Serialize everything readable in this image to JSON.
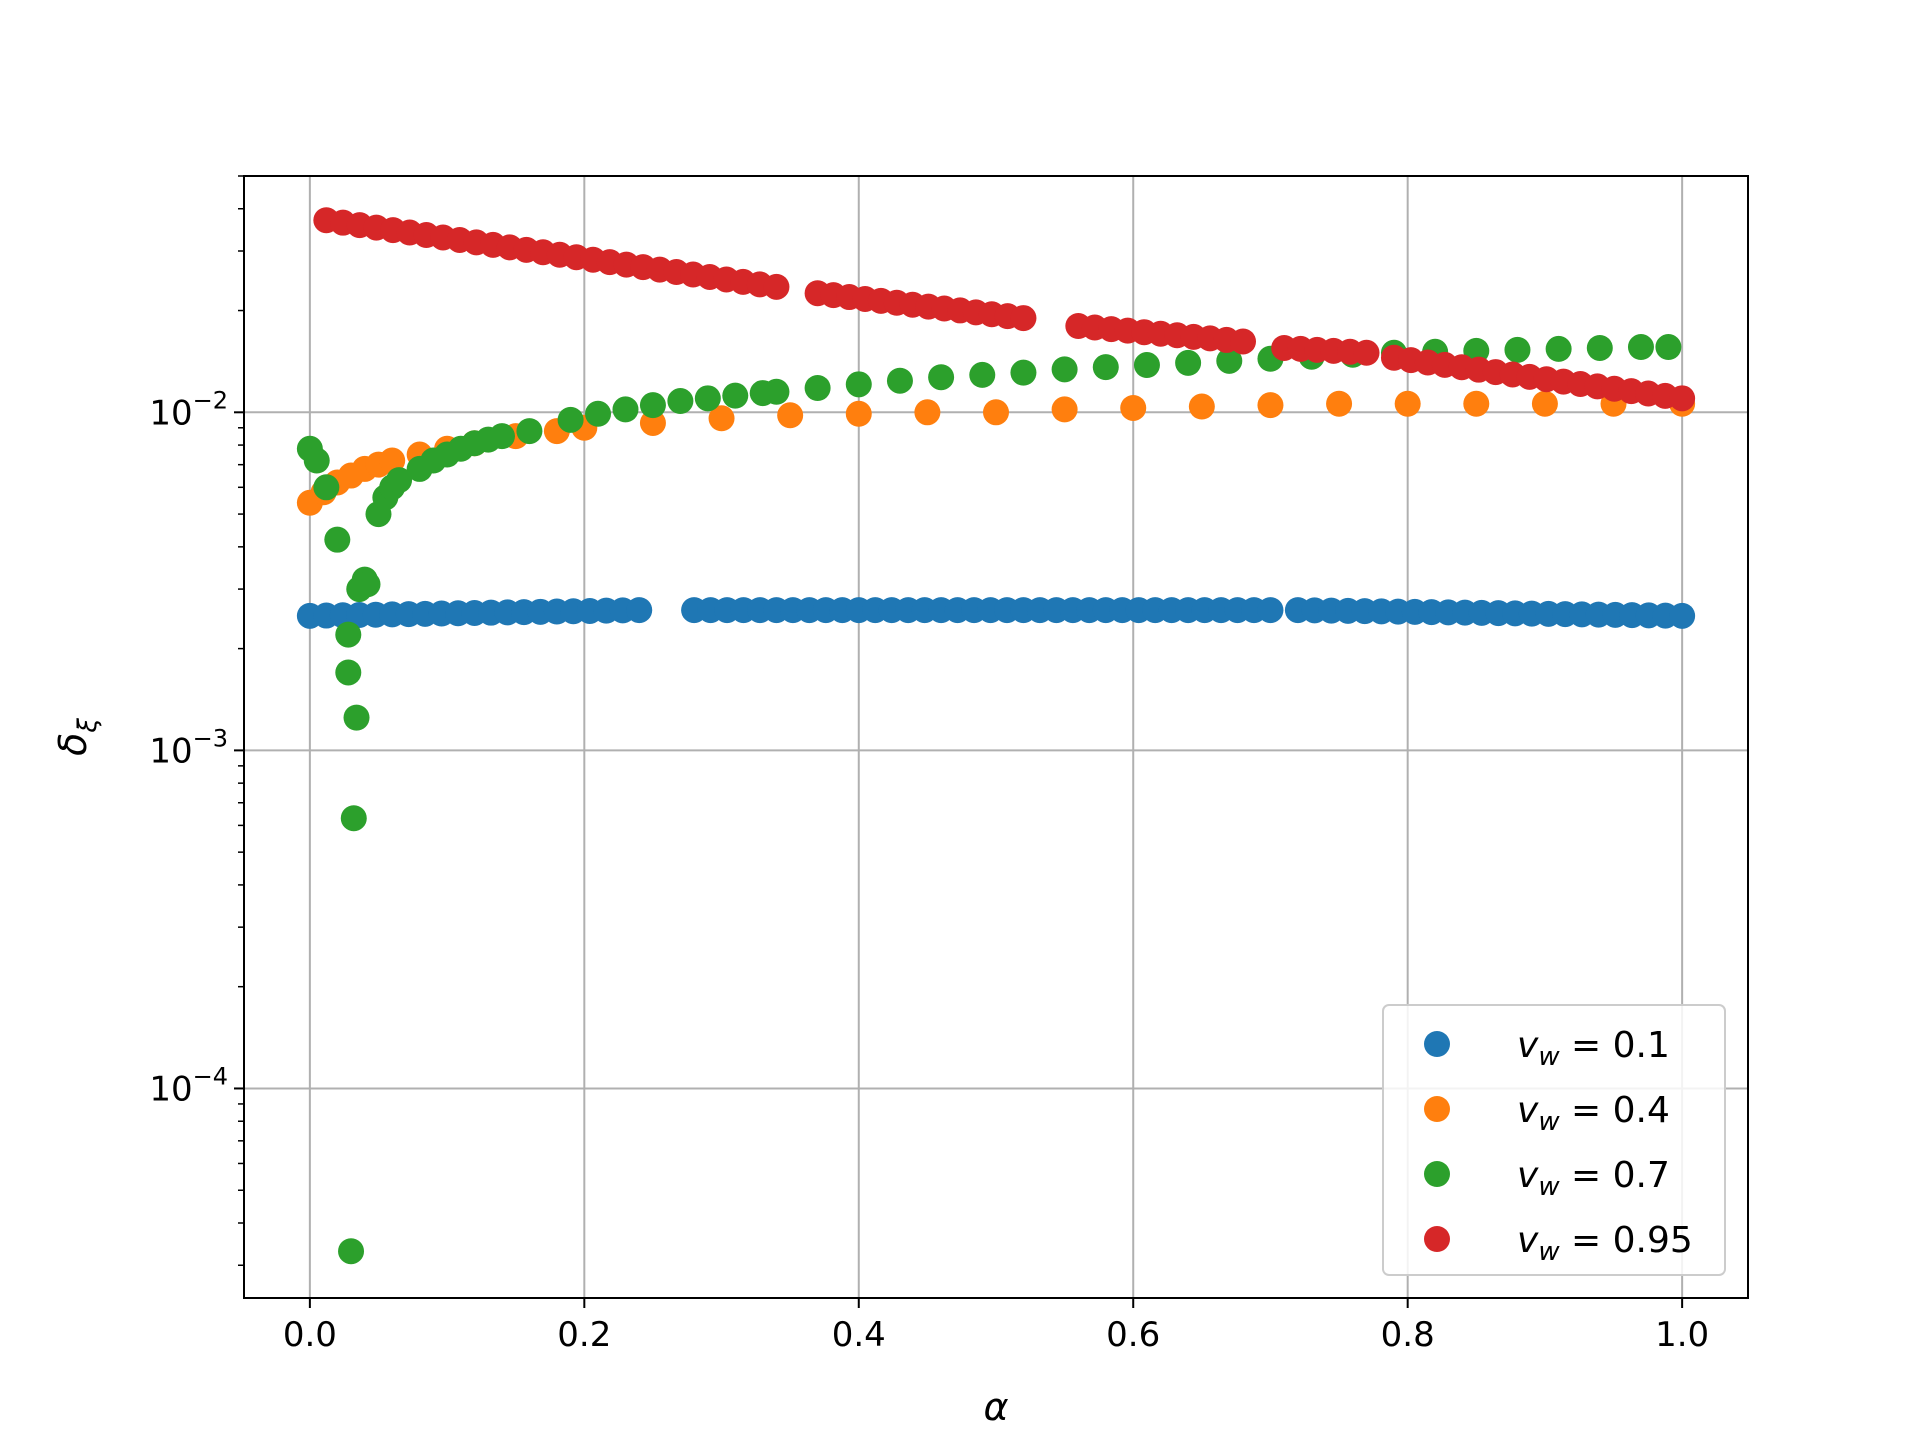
{
  "chart_data": {
    "type": "scatter",
    "title": "",
    "xlabel": "α",
    "ylabel": "δ",
    "ylabel_subscript": "ξ",
    "xlim": [
      -0.048,
      1.048
    ],
    "ylim": [
      2.4e-05,
      0.05
    ],
    "yscale": "log",
    "grid": true,
    "legend_position": "lower-right",
    "x_ticks": [
      {
        "value": 0.0,
        "label": "0.0"
      },
      {
        "value": 0.2,
        "label": "0.2"
      },
      {
        "value": 0.4,
        "label": "0.4"
      },
      {
        "value": 0.6,
        "label": "0.6"
      },
      {
        "value": 0.8,
        "label": "0.8"
      },
      {
        "value": 1.0,
        "label": "1.0"
      }
    ],
    "y_ticks": [
      {
        "value": 0.0001,
        "base": "10",
        "exponent": "−4"
      },
      {
        "value": 0.001,
        "base": "10",
        "exponent": "−3"
      },
      {
        "value": 0.01,
        "base": "10",
        "exponent": "−2"
      }
    ],
    "series": [
      {
        "name": "v_w = 0.1",
        "label_var": "v",
        "label_sub": "w",
        "label_rest": " = 0.1",
        "color": "#1f77b4",
        "segments": [
          [
            0.0,
            0.0025,
            0.24,
            0.0026
          ],
          [
            0.28,
            0.0026,
            0.7,
            0.0026
          ],
          [
            0.72,
            0.0026,
            1.0,
            0.0025
          ]
        ],
        "x": [],
        "y": []
      },
      {
        "name": "v_w = 0.4",
        "label_var": "v",
        "label_sub": "w",
        "label_rest": " = 0.4",
        "color": "#ff7f0e",
        "x": [
          0.0,
          0.01,
          0.02,
          0.03,
          0.04,
          0.05,
          0.06,
          0.08,
          0.1,
          0.12,
          0.15,
          0.18,
          0.2,
          0.25,
          0.3,
          0.35,
          0.4,
          0.45,
          0.5,
          0.55,
          0.6,
          0.65,
          0.7,
          0.75,
          0.8,
          0.85,
          0.9,
          0.95,
          1.0
        ],
        "y": [
          0.0054,
          0.0058,
          0.0062,
          0.0065,
          0.0068,
          0.007,
          0.0072,
          0.0075,
          0.0078,
          0.0081,
          0.0085,
          0.0088,
          0.009,
          0.0093,
          0.0096,
          0.0098,
          0.0099,
          0.01,
          0.01,
          0.0102,
          0.0103,
          0.0104,
          0.0105,
          0.0106,
          0.0106,
          0.0106,
          0.0106,
          0.0106,
          0.0106
        ],
        "segments": []
      },
      {
        "name": "v_w = 0.7",
        "label_var": "v",
        "label_sub": "w",
        "label_rest": " = 0.7",
        "color": "#2ca02c",
        "x": [
          0.0,
          0.005,
          0.012,
          0.02,
          0.028,
          0.028,
          0.03,
          0.032,
          0.034,
          0.036,
          0.04,
          0.042,
          0.05,
          0.055,
          0.06,
          0.065,
          0.08,
          0.09,
          0.1,
          0.11,
          0.12,
          0.13,
          0.14,
          0.16,
          0.19,
          0.21,
          0.23,
          0.25,
          0.27,
          0.29,
          0.31,
          0.33,
          0.34,
          0.37,
          0.4,
          0.43,
          0.46,
          0.49,
          0.52,
          0.55,
          0.58,
          0.61,
          0.64,
          0.67,
          0.7,
          0.73,
          0.76,
          0.79,
          0.82,
          0.85,
          0.88,
          0.91,
          0.94,
          0.97,
          0.99
        ],
        "y": [
          0.0078,
          0.0072,
          0.006,
          0.0042,
          0.0022,
          0.0017,
          3.3e-05,
          0.00063,
          0.00125,
          0.003,
          0.0032,
          0.0031,
          0.005,
          0.0056,
          0.006,
          0.0063,
          0.0068,
          0.0072,
          0.0075,
          0.0078,
          0.0081,
          0.0083,
          0.0085,
          0.0088,
          0.0095,
          0.0099,
          0.0102,
          0.0105,
          0.0108,
          0.011,
          0.0112,
          0.0114,
          0.0115,
          0.0118,
          0.0121,
          0.0124,
          0.0127,
          0.0129,
          0.0131,
          0.0134,
          0.0136,
          0.0138,
          0.014,
          0.0142,
          0.0144,
          0.0146,
          0.0148,
          0.015,
          0.0151,
          0.0152,
          0.0153,
          0.0154,
          0.0155,
          0.0156,
          0.0156
        ],
        "segments": []
      },
      {
        "name": "v_w = 0.95",
        "label_var": "v",
        "label_sub": "w",
        "label_rest": " = 0.95",
        "color": "#d62728",
        "segments": [
          [
            0.012,
            0.037,
            0.34,
            0.0235
          ],
          [
            0.37,
            0.0225,
            0.52,
            0.019
          ],
          [
            0.56,
            0.018,
            0.68,
            0.0162
          ],
          [
            0.71,
            0.0155,
            0.77,
            0.015
          ],
          [
            0.79,
            0.0145,
            1.0,
            0.011
          ]
        ],
        "x": [],
        "y": []
      }
    ]
  }
}
